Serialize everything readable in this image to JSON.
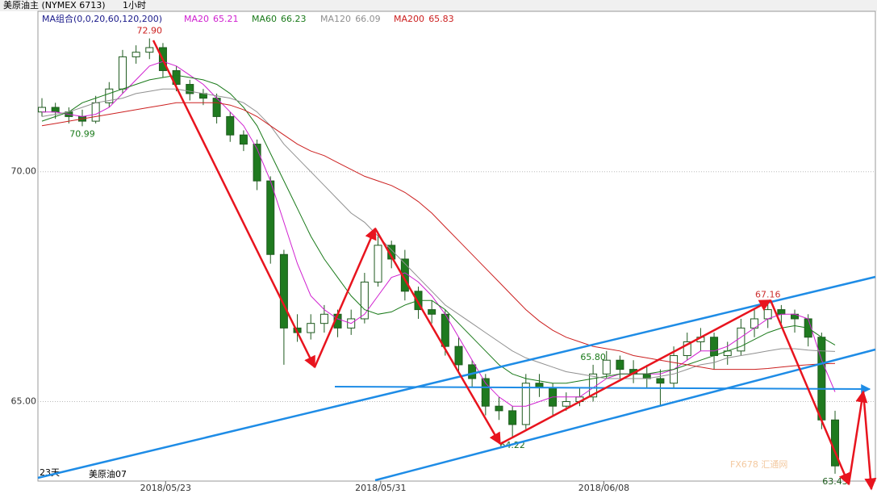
{
  "header": {
    "symbol": "美原油主 (NYMEX 6713)",
    "period": "1小时",
    "indicator": "MA组合(0,0,20,60,120,200)",
    "bottom_left": "23天",
    "bottom_label": "美原油07",
    "watermark": "FX678 汇通网"
  },
  "chart_data": {
    "type": "candlestick",
    "candles": [
      [
        71.3,
        71.6,
        71.2,
        71.4
      ],
      [
        71.4,
        71.5,
        71.15,
        71.3
      ],
      [
        71.3,
        71.4,
        71.05,
        71.2
      ],
      [
        71.2,
        71.35,
        70.99,
        71.1
      ],
      [
        71.1,
        71.65,
        71.05,
        71.5
      ],
      [
        71.5,
        71.95,
        71.4,
        71.8
      ],
      [
        71.8,
        72.65,
        71.7,
        72.5
      ],
      [
        72.5,
        72.75,
        72.35,
        72.6
      ],
      [
        72.6,
        72.9,
        72.45,
        72.7
      ],
      [
        72.7,
        72.8,
        72.05,
        72.2
      ],
      [
        72.2,
        72.3,
        71.75,
        71.9
      ],
      [
        71.9,
        72.0,
        71.55,
        71.7
      ],
      [
        71.7,
        71.8,
        71.45,
        71.6
      ],
      [
        71.6,
        71.7,
        71.05,
        71.2
      ],
      [
        71.2,
        71.3,
        70.65,
        70.8
      ],
      [
        70.8,
        70.9,
        70.45,
        70.6
      ],
      [
        70.6,
        70.7,
        69.6,
        69.8
      ],
      [
        69.8,
        69.9,
        68.0,
        68.2
      ],
      [
        68.2,
        68.3,
        65.8,
        66.6
      ],
      [
        66.6,
        66.9,
        66.3,
        66.5
      ],
      [
        66.5,
        66.9,
        66.35,
        66.7
      ],
      [
        66.7,
        67.1,
        66.5,
        66.9
      ],
      [
        66.9,
        67.0,
        66.4,
        66.6
      ],
      [
        66.6,
        67.0,
        66.45,
        66.8
      ],
      [
        66.8,
        67.8,
        66.7,
        67.6
      ],
      [
        67.6,
        68.7,
        67.5,
        68.4
      ],
      [
        68.4,
        68.5,
        67.9,
        68.1
      ],
      [
        68.1,
        68.3,
        67.2,
        67.4
      ],
      [
        67.4,
        67.5,
        66.8,
        67.0
      ],
      [
        67.0,
        67.2,
        66.7,
        66.9
      ],
      [
        66.9,
        67.0,
        66.0,
        66.2
      ],
      [
        66.2,
        66.4,
        65.6,
        65.8
      ],
      [
        65.8,
        65.9,
        65.3,
        65.5
      ],
      [
        65.5,
        65.6,
        64.7,
        64.9
      ],
      [
        64.9,
        65.1,
        64.6,
        64.8
      ],
      [
        64.8,
        64.9,
        64.22,
        64.5
      ],
      [
        64.5,
        65.6,
        64.4,
        65.4
      ],
      [
        65.4,
        65.6,
        65.1,
        65.3
      ],
      [
        65.3,
        65.4,
        64.7,
        64.9
      ],
      [
        64.9,
        65.2,
        64.8,
        65.0
      ],
      [
        65.0,
        65.3,
        64.9,
        65.1
      ],
      [
        65.1,
        65.8,
        65.0,
        65.6
      ],
      [
        65.6,
        66.1,
        65.5,
        65.9
      ],
      [
        65.9,
        66.0,
        65.5,
        65.7
      ],
      [
        65.7,
        65.9,
        65.4,
        65.6
      ],
      [
        65.6,
        65.8,
        65.3,
        65.5
      ],
      [
        65.5,
        65.7,
        64.9,
        65.4
      ],
      [
        65.4,
        66.2,
        65.3,
        66.0
      ],
      [
        66.0,
        66.5,
        65.9,
        66.3
      ],
      [
        66.3,
        66.6,
        66.1,
        66.4
      ],
      [
        66.4,
        66.5,
        65.7,
        66.0
      ],
      [
        66.0,
        66.3,
        65.8,
        66.1
      ],
      [
        66.1,
        66.8,
        66.0,
        66.6
      ],
      [
        66.6,
        67.0,
        66.4,
        66.8
      ],
      [
        66.8,
        67.16,
        66.6,
        67.0
      ],
      [
        67.0,
        67.1,
        66.7,
        66.9
      ],
      [
        66.9,
        67.0,
        66.5,
        66.8
      ],
      [
        66.8,
        66.9,
        66.2,
        66.4
      ],
      [
        66.4,
        66.5,
        64.4,
        64.6
      ],
      [
        64.6,
        64.8,
        63.43,
        63.6
      ]
    ],
    "series": [
      {
        "name": "MA20",
        "color": "#d020d0",
        "values": [
          71.3,
          71.3,
          71.25,
          71.2,
          71.25,
          71.4,
          71.7,
          72.0,
          72.3,
          72.4,
          72.3,
          72.1,
          71.9,
          71.6,
          71.3,
          71.0,
          70.5,
          69.8,
          68.9,
          68.0,
          67.3,
          67.0,
          66.8,
          66.7,
          66.9,
          67.3,
          67.7,
          67.8,
          67.6,
          67.3,
          66.9,
          66.4,
          65.9,
          65.4,
          65.1,
          64.9,
          64.9,
          65.0,
          65.1,
          65.1,
          65.1,
          65.3,
          65.5,
          65.6,
          65.6,
          65.6,
          65.6,
          65.7,
          65.9,
          66.1,
          66.1,
          66.2,
          66.4,
          66.6,
          66.8,
          66.9,
          66.9,
          66.8,
          65.9,
          65.21
        ]
      },
      {
        "name": "MA60",
        "color": "#1a7a1a",
        "values": [
          71.1,
          71.2,
          71.3,
          71.5,
          71.6,
          71.7,
          71.8,
          71.9,
          72.0,
          72.05,
          72.1,
          72.05,
          72.0,
          71.9,
          71.7,
          71.4,
          71.0,
          70.4,
          69.8,
          69.2,
          68.6,
          68.1,
          67.7,
          67.3,
          67.0,
          66.9,
          66.95,
          67.1,
          67.2,
          67.2,
          67.0,
          66.7,
          66.4,
          66.1,
          65.8,
          65.6,
          65.5,
          65.45,
          65.4,
          65.4,
          65.45,
          65.5,
          65.55,
          65.6,
          65.6,
          65.6,
          65.65,
          65.7,
          65.8,
          65.9,
          66.0,
          66.1,
          66.2,
          66.35,
          66.5,
          66.6,
          66.65,
          66.6,
          66.4,
          66.23
        ]
      },
      {
        "name": "MA120",
        "color": "#909090",
        "values": [
          71.2,
          71.25,
          71.3,
          71.4,
          71.5,
          71.55,
          71.6,
          71.7,
          71.75,
          71.8,
          71.8,
          71.75,
          71.7,
          71.65,
          71.6,
          71.5,
          71.3,
          71.0,
          70.6,
          70.3,
          70.0,
          69.7,
          69.4,
          69.1,
          68.9,
          68.6,
          68.3,
          68.0,
          67.7,
          67.4,
          67.1,
          66.9,
          66.7,
          66.5,
          66.3,
          66.1,
          65.95,
          65.85,
          65.75,
          65.65,
          65.6,
          65.55,
          65.5,
          65.5,
          65.5,
          65.5,
          65.55,
          65.6,
          65.7,
          65.8,
          65.85,
          65.95,
          66.0,
          66.05,
          66.1,
          66.15,
          66.15,
          66.12,
          66.1,
          66.09
        ]
      },
      {
        "name": "MA200",
        "color": "#cc2020",
        "values": [
          71.0,
          71.05,
          71.1,
          71.15,
          71.2,
          71.25,
          71.3,
          71.35,
          71.4,
          71.45,
          71.5,
          71.5,
          71.5,
          71.5,
          71.45,
          71.35,
          71.2,
          71.0,
          70.8,
          70.6,
          70.45,
          70.35,
          70.2,
          70.05,
          69.9,
          69.8,
          69.7,
          69.55,
          69.35,
          69.1,
          68.8,
          68.5,
          68.2,
          67.9,
          67.6,
          67.3,
          67.0,
          66.75,
          66.55,
          66.4,
          66.3,
          66.2,
          66.15,
          66.1,
          66.0,
          65.95,
          65.9,
          65.85,
          65.8,
          65.75,
          65.7,
          65.7,
          65.7,
          65.7,
          65.72,
          65.75,
          65.78,
          65.8,
          65.82,
          65.83
        ]
      }
    ],
    "annotations": [
      {
        "value": 72.9,
        "label": "72.90",
        "color": "#cc2020"
      },
      {
        "value": 70.99,
        "label": "70.99",
        "color": "#1a7a1a"
      },
      {
        "value": 65.8,
        "label": "65.80",
        "color": "#1a7a1a"
      },
      {
        "value": 64.22,
        "label": "64.22",
        "color": "#1a6a1a"
      },
      {
        "value": 67.16,
        "label": "67.16",
        "color": "#cc3030"
      },
      {
        "value": 63.43,
        "label": "63.43",
        "color": "#1a5a1a"
      }
    ],
    "xlim": [
      -0.3,
      62
    ],
    "xticks": [
      {
        "value": 9.2,
        "label": "2018/05/23"
      },
      {
        "value": 25.2,
        "label": "2018/05/31"
      },
      {
        "value": 41.8,
        "label": "2018/06/08"
      }
    ],
    "ylim": [
      63.27,
      73.49
    ],
    "yticks": [
      {
        "value": 65,
        "label": "65.00"
      },
      {
        "value": 70,
        "label": "70.00"
      }
    ],
    "grid": true,
    "up_color": "#ffffff",
    "down_color": "#1f7a1f",
    "outline_color": "#1f5a1f"
  }
}
